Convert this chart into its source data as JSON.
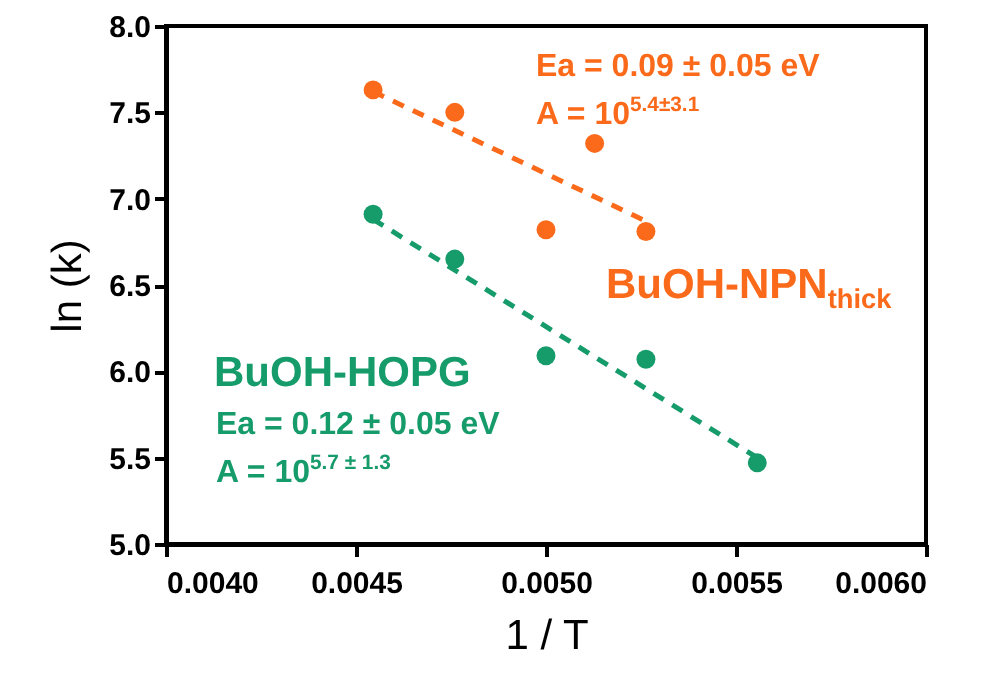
{
  "chart_data": {
    "type": "scatter",
    "xlabel": "1 / T",
    "ylabel": "ln (k)",
    "marker": "circle",
    "grid": false,
    "xlim": [
      0.004,
      0.006
    ],
    "ylim": [
      5,
      8
    ],
    "xticks": [
      {
        "value": 0.004,
        "label": "0.0040"
      },
      {
        "value": 0.0045,
        "label": "0.0045"
      },
      {
        "value": 0.005,
        "label": "0.0050"
      },
      {
        "value": 0.0055,
        "label": "0.0055"
      },
      {
        "value": 0.006,
        "label": "0.0060"
      }
    ],
    "yticks": [
      {
        "value": 5,
        "label": "5.0"
      },
      {
        "value": 5.5,
        "label": "5.5"
      },
      {
        "value": 6,
        "label": "6.0"
      },
      {
        "value": 6.5,
        "label": "6.5"
      },
      {
        "value": 7,
        "label": "7.0"
      },
      {
        "value": 7.5,
        "label": "7.5"
      },
      {
        "value": 8,
        "label": "8.0"
      }
    ],
    "series": [
      {
        "name": "BuOH-NPN$_{thick}$",
        "color": "#fb6a1a",
        "x": [
          0.004545,
          0.00476,
          0.005128,
          0.005,
          0.005263
        ],
        "values": [
          7.63,
          7.5,
          7.32,
          6.82,
          6.81
        ]
      },
      {
        "type": "line",
        "marker": "none",
        "color": "#fb6a1a",
        "line_style": "dashed",
        "x": [
          0.004545,
          0.005263
        ],
        "values": [
          7.62,
          6.87
        ]
      },
      {
        "name": "BuOH-HOPG",
        "color": "#169b6b",
        "x": [
          0.004545,
          0.00476,
          0.005,
          0.005263,
          0.005556
        ],
        "values": [
          6.91,
          6.65,
          6.09,
          6.07,
          5.47
        ]
      },
      {
        "type": "line",
        "marker": "none",
        "color": "#169b6b",
        "line_style": "dashed",
        "x": [
          0.004545,
          0.005556
        ],
        "values": [
          6.88,
          5.5
        ]
      }
    ],
    "annotations": [
      "Ea = 0.09 ± 0.05 eV",
      "A = 10$^{5.4±3.1}$",
      "Ea = 0.12 ± 0.05 eV",
      "A = 10$^{5.7 ± 1.3}$"
    ]
  }
}
